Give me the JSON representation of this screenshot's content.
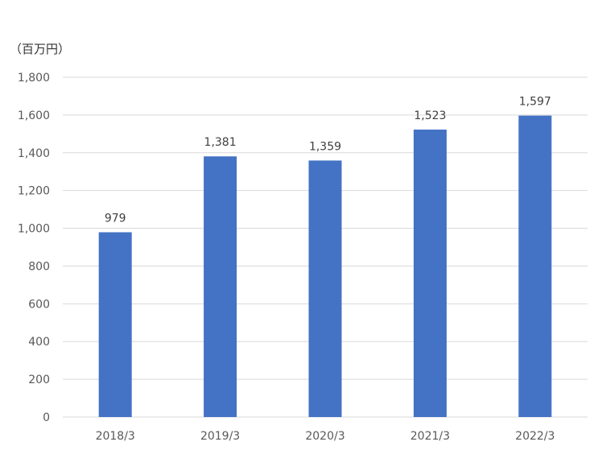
{
  "unit_label": "（百万円）",
  "colors": {
    "bar": "#4472C4",
    "grid": "#d9d9d9",
    "axis_text": "#595959",
    "data_label": "#404040"
  },
  "chart_data": {
    "type": "bar",
    "categories": [
      "2018/3",
      "2019/3",
      "2020/3",
      "2021/3",
      "2022/3"
    ],
    "values": [
      979,
      1381,
      1359,
      1523,
      1597
    ],
    "data_labels": [
      "979",
      "1,381",
      "1,359",
      "1,523",
      "1,597"
    ],
    "title": "",
    "xlabel": "",
    "ylabel": "",
    "ylim": [
      0,
      1800
    ],
    "yticks": [
      0,
      200,
      400,
      600,
      800,
      1000,
      1200,
      1400,
      1600,
      1800
    ],
    "ytick_labels": [
      "0",
      "200",
      "400",
      "600",
      "800",
      "1,000",
      "1,200",
      "1,400",
      "1,600",
      "1,800"
    ],
    "grid": true,
    "legend": "none"
  }
}
